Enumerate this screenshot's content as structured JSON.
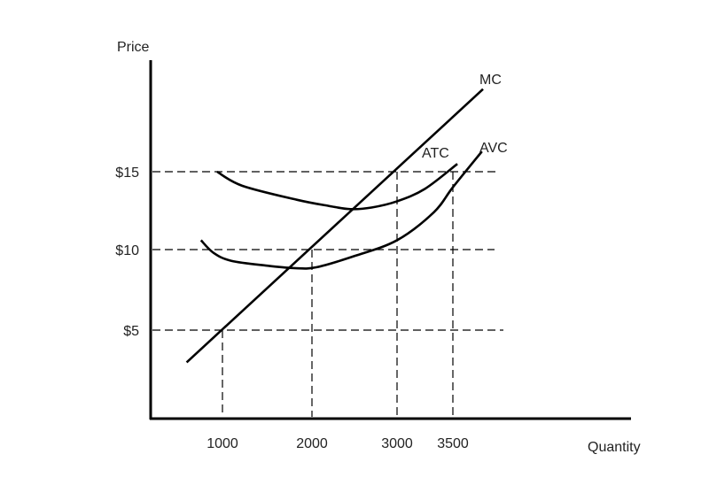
{
  "chart_data": {
    "type": "line",
    "title": "",
    "xlabel": "Quantity",
    "ylabel": "Price",
    "x_ticks": [
      1000,
      2000,
      3000,
      3500
    ],
    "x_tick_labels": [
      "1000",
      "2000",
      "3000",
      "3500"
    ],
    "y_ticks": [
      5,
      10,
      15
    ],
    "y_tick_labels": [
      "$5",
      "$10",
      "$15"
    ],
    "grid": false,
    "reference_lines": {
      "horizontal": [
        5,
        10,
        15
      ],
      "vertical": [
        1000,
        2000,
        3000,
        3500
      ]
    },
    "series": [
      {
        "name": "MC",
        "label": "MC",
        "points": [
          [
            600,
            3.0
          ],
          [
            1000,
            5
          ],
          [
            2000,
            10
          ],
          [
            3000,
            15
          ],
          [
            3770,
            20.3
          ]
        ]
      },
      {
        "name": "ATC",
        "label": "ATC",
        "points": [
          [
            940,
            15
          ],
          [
            1220,
            14.1
          ],
          [
            1830,
            13.2
          ],
          [
            2200,
            12.8
          ],
          [
            2450,
            12.6
          ],
          [
            2700,
            12.7
          ],
          [
            3000,
            13.1
          ],
          [
            3250,
            13.9
          ],
          [
            3540,
            15.5
          ]
        ]
      },
      {
        "name": "AVC",
        "label": "AVC",
        "points": [
          [
            760,
            10.6
          ],
          [
            900,
            9.8
          ],
          [
            1100,
            9.3
          ],
          [
            1500,
            9.0
          ],
          [
            1800,
            8.85
          ],
          [
            2050,
            8.9
          ],
          [
            2500,
            9.6
          ],
          [
            3000,
            10.6
          ],
          [
            3330,
            12.4
          ],
          [
            3500,
            14.0
          ],
          [
            3760,
            16.3
          ]
        ]
      }
    ]
  }
}
